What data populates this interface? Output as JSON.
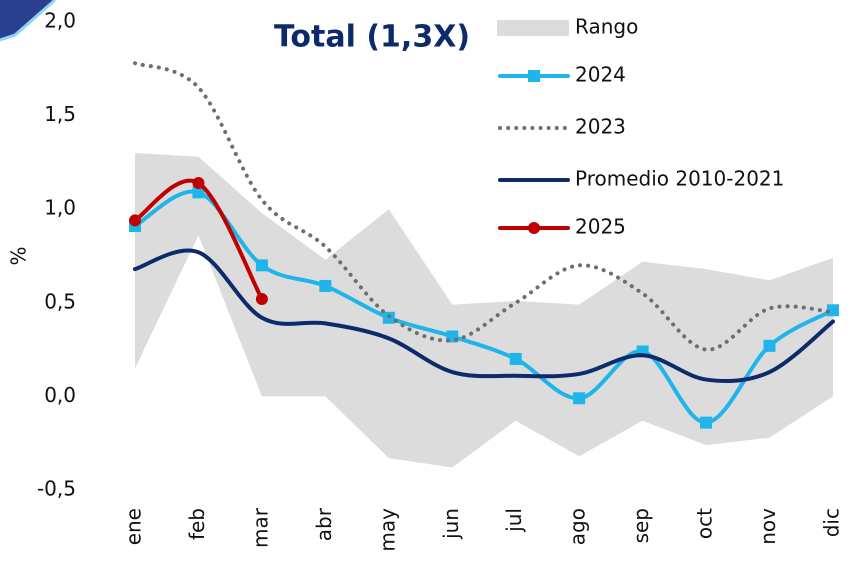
{
  "chart_data": {
    "type": "line",
    "title": "Total (1,3X)",
    "y_label": "%",
    "categories": [
      "ene",
      "feb",
      "mar",
      "abr",
      "may",
      "jun",
      "jul",
      "ago",
      "sep",
      "oct",
      "nov",
      "dic"
    ],
    "ylim": [
      -0.5,
      2.0
    ],
    "yticks": [
      {
        "value": -0.5,
        "label": "-0,5"
      },
      {
        "value": 0,
        "label": "0,0"
      },
      {
        "value": 0.5,
        "label": "0,5"
      },
      {
        "value": 1.0,
        "label": "1,0"
      },
      {
        "value": 1.5,
        "label": "1,5"
      },
      {
        "value": 2.0,
        "label": "2,0"
      }
    ],
    "series": [
      {
        "name": "Rango",
        "color": "#dcdcdc",
        "style": "range",
        "high": [
          1.3,
          1.28,
          0.98,
          0.73,
          1.0,
          0.49,
          0.51,
          0.49,
          0.72,
          0.68,
          0.62,
          0.74
        ],
        "low": [
          0.15,
          0.86,
          0.0,
          0.0,
          -0.33,
          -0.38,
          -0.13,
          -0.32,
          -0.13,
          -0.26,
          -0.22,
          0.0
        ]
      },
      {
        "name": "2024",
        "color": "#1fb5ea",
        "style": "solid",
        "marker": "square",
        "values": [
          0.91,
          1.09,
          0.7,
          0.59,
          0.42,
          0.32,
          0.2,
          -0.01,
          0.24,
          -0.14,
          0.27,
          0.46
        ]
      },
      {
        "name": "2023",
        "color": "#6e6e6e",
        "style": "dotted",
        "values": [
          1.78,
          1.65,
          1.05,
          0.8,
          0.43,
          0.3,
          0.5,
          0.7,
          0.55,
          0.25,
          0.47,
          0.45
        ]
      },
      {
        "name": "Promedio 2010-2021",
        "color": "#0d2b6b",
        "style": "solid",
        "values": [
          0.68,
          0.77,
          0.42,
          0.39,
          0.31,
          0.13,
          0.11,
          0.12,
          0.22,
          0.09,
          0.13,
          0.4
        ]
      },
      {
        "name": "2025",
        "color": "#c00000",
        "style": "solid",
        "marker": "circle",
        "values": [
          0.94,
          1.14,
          0.52,
          null,
          null,
          null,
          null,
          null,
          null,
          null,
          null,
          null
        ]
      }
    ]
  }
}
